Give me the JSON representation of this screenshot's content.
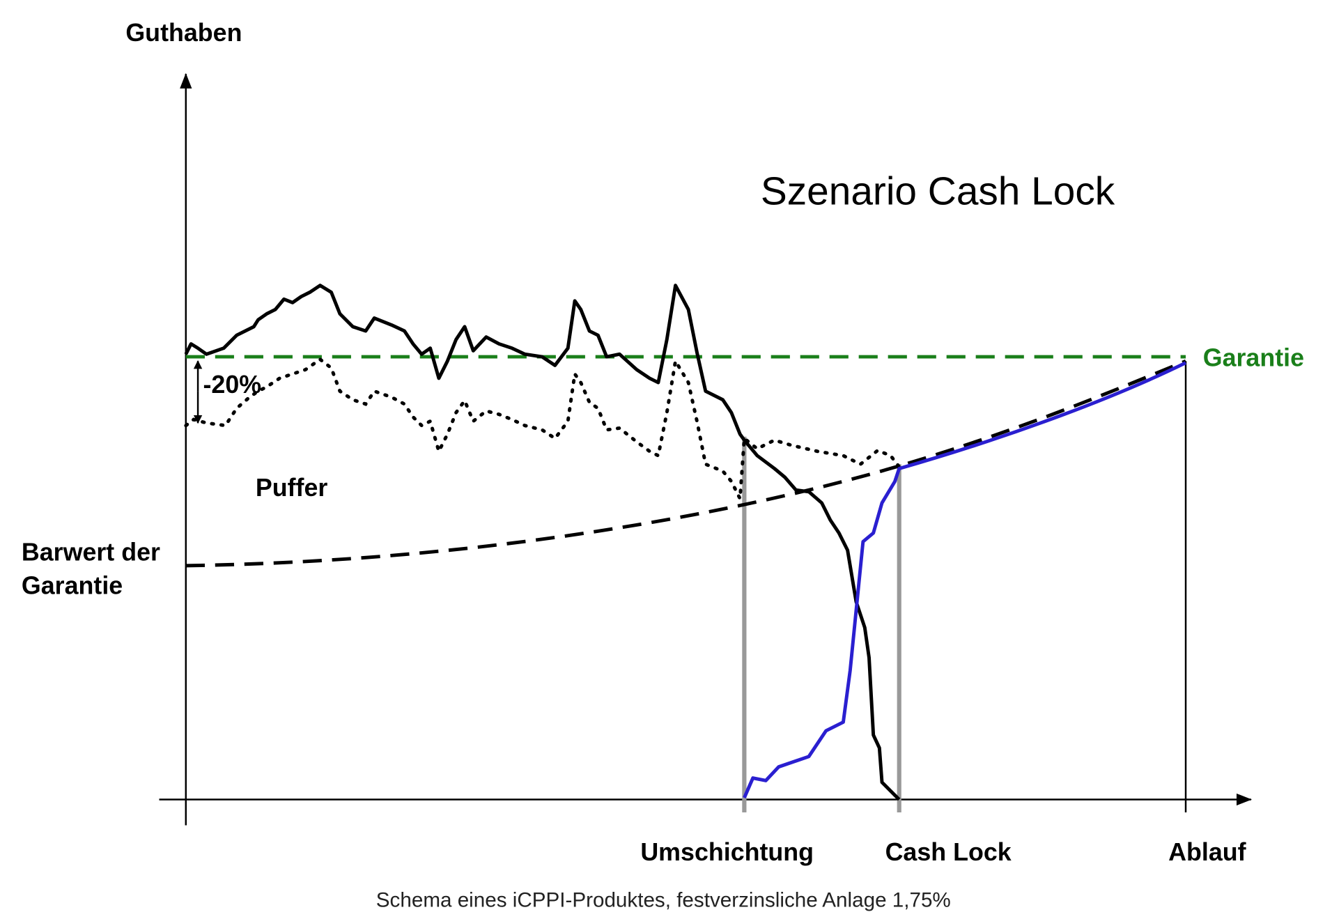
{
  "y_axis_label": "Guthaben",
  "title": "Szenario Cash Lock",
  "guarantee_label": "Garantie",
  "drawdown_label": "-20%",
  "buffer_label": "Puffer",
  "present_value_label": [
    "Barwert der",
    "Garantie"
  ],
  "x_markers": [
    "Umschichtung",
    "Cash Lock",
    "Ablauf"
  ],
  "caption": "Schema eines iCPPI-Produktes, festverzinsliche Anlage 1,75%"
}
